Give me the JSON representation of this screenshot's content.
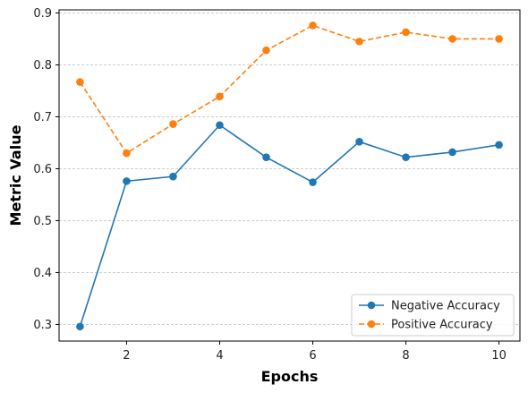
{
  "chart_data": {
    "type": "line",
    "title": "",
    "xlabel": "Epochs",
    "ylabel": "Metric Value",
    "x": [
      1,
      2,
      3,
      4,
      5,
      6,
      7,
      8,
      9,
      10
    ],
    "xlim": [
      0.55,
      10.45
    ],
    "ylim": [
      0.268,
      0.906
    ],
    "xticks": [
      2,
      4,
      6,
      8,
      10
    ],
    "xtick_labels": [
      "2",
      "4",
      "6",
      "8",
      "10"
    ],
    "yticks": [
      0.3,
      0.4,
      0.5,
      0.6,
      0.7,
      0.8,
      0.9
    ],
    "ytick_labels": [
      "0.3",
      "0.4",
      "0.5",
      "0.6",
      "0.7",
      "0.8",
      "0.9"
    ],
    "grid": "horizontal dashed",
    "legend_position": "lower-right",
    "series": [
      {
        "name": "Negative Accuracy",
        "color": "#1f77b4",
        "line_style": "solid",
        "marker": "circle",
        "values": [
          0.296,
          0.576,
          0.585,
          0.684,
          0.622,
          0.574,
          0.652,
          0.622,
          0.632,
          0.646
        ]
      },
      {
        "name": "Positive Accuracy",
        "color": "#ff7f0e",
        "line_style": "dashed",
        "marker": "circle",
        "values": [
          0.767,
          0.63,
          0.686,
          0.739,
          0.828,
          0.876,
          0.845,
          0.863,
          0.85,
          0.85
        ]
      }
    ]
  }
}
